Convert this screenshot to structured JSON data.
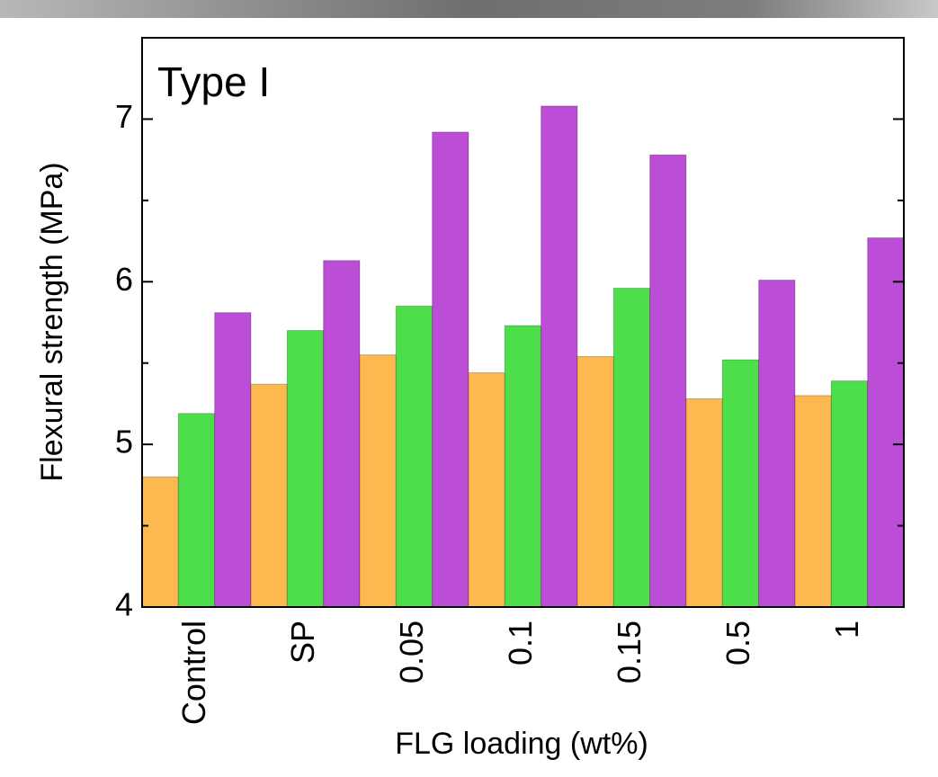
{
  "chart_data": {
    "type": "bar",
    "annotation": "Type I",
    "xlabel": "FLG loading (wt%)",
    "ylabel": "Flexural strength (MPa)",
    "categories": [
      "Control",
      "SP",
      "0.05",
      "0.1",
      "0.15",
      "0.5",
      "1"
    ],
    "series": [
      {
        "color": "#fdb94f",
        "values": [
          4.8,
          5.37,
          5.55,
          5.44,
          5.54,
          5.28,
          5.3
        ]
      },
      {
        "color": "#4ddf4a",
        "values": [
          5.19,
          5.7,
          5.85,
          5.73,
          5.96,
          5.52,
          5.39
        ]
      },
      {
        "color": "#bb4dd6",
        "values": [
          5.81,
          6.13,
          6.92,
          7.08,
          6.78,
          6.01,
          6.27
        ]
      }
    ],
    "ylim": [
      4,
      7.5
    ],
    "yticks": [
      4,
      5,
      6,
      7
    ],
    "yminorticks": [
      4.5,
      5.5,
      6.5,
      7.5
    ]
  }
}
